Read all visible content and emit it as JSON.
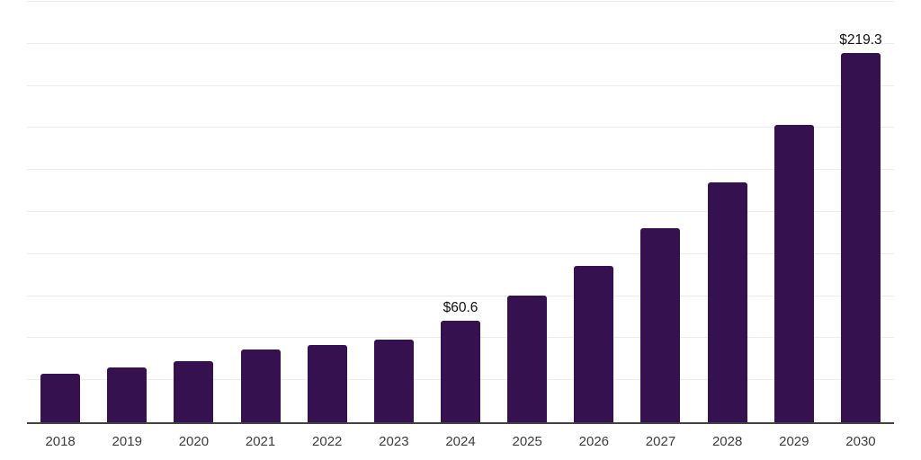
{
  "chart_data": {
    "type": "bar",
    "categories": [
      "2018",
      "2019",
      "2020",
      "2021",
      "2022",
      "2023",
      "2024",
      "2025",
      "2026",
      "2027",
      "2028",
      "2029",
      "2030"
    ],
    "values": [
      28.6,
      32.5,
      36.4,
      43.5,
      46.2,
      49.3,
      60.6,
      75.1,
      93.0,
      115.3,
      142.8,
      176.9,
      219.3
    ],
    "data_labels": [
      "",
      "",
      "",
      "",
      "",
      "",
      "$60.6",
      "",
      "",
      "",
      "",
      "",
      "$219.3"
    ],
    "ylim": [
      0,
      250
    ],
    "gridline_step": 25,
    "grid": "horizontal",
    "y_tick_labels": "hidden",
    "legend": "none",
    "colors": {
      "bar": "#361150",
      "gridline": "#ececec",
      "axis_line": "#424242",
      "tick_label": "#3d3d3d",
      "data_label": "#111111",
      "background": "#ffffff"
    }
  }
}
